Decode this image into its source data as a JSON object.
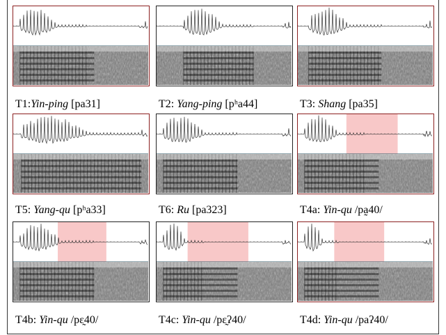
{
  "panels": [
    {
      "label": "T1:",
      "name": "Yin-ping",
      "transcription": "[pa31]"
    },
    {
      "label": "T2:",
      "name": "Yang-ping",
      "transcription": "[pʰa44]"
    },
    {
      "label": "T3:",
      "name": "Shang",
      "transcription": "[pa35]"
    },
    {
      "label": "T5:",
      "name": "Yang-qu",
      "transcription": "[pʰa33]"
    },
    {
      "label": "T6:",
      "name": "Ru",
      "transcription": "[pa323]"
    },
    {
      "label": "T4a:",
      "name": "Yin-qu",
      "transcription": "/pa̰40/"
    },
    {
      "label": "T4b:",
      "name": "Yin-qu",
      "transcription": "/pɛ̰40/"
    },
    {
      "label": "T4c:",
      "name": "Yin-qu",
      "transcription": "/pɛ̰ʔ40/"
    },
    {
      "label": "T4d:",
      "name": "Yin-qu",
      "transcription": "/paʔ40/"
    }
  ]
}
